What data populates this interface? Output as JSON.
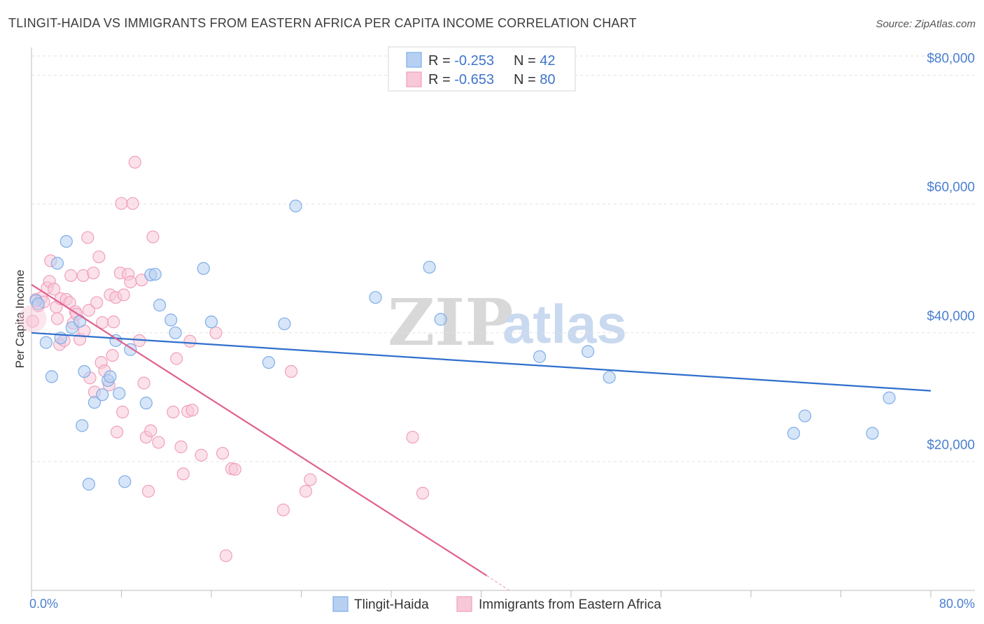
{
  "chart_data": {
    "type": "scatter",
    "title": "TLINGIT-HAIDA VS IMMIGRANTS FROM EASTERN AFRICA PER CAPITA INCOME CORRELATION CHART",
    "source": "Source: ZipAtlas.com",
    "ylabel": "Per Capita Income",
    "xlabel": "",
    "xlim": [
      0,
      80
    ],
    "ylim": [
      0,
      83000
    ],
    "x_tick_labels": {
      "left": "0.0%",
      "right": "80.0%"
    },
    "y_ticks": [
      {
        "value": 20000,
        "label": "$20,000"
      },
      {
        "value": 40000,
        "label": "$40,000"
      },
      {
        "value": 60000,
        "label": "$60,000"
      },
      {
        "value": 80000,
        "label": "$80,000"
      }
    ],
    "grid": true,
    "legend_position": "top-center",
    "watermark": {
      "zip": "ZIP",
      "atlas": "atlas"
    },
    "legend": [
      {
        "r_label": "R = ",
        "r_value": "-0.253",
        "n_label": "N = ",
        "n_value": "42"
      },
      {
        "r_label": "R = ",
        "r_value": "-0.653",
        "n_label": "N = ",
        "n_value": "80"
      }
    ],
    "series": [
      {
        "name": "Tlingit-Haida",
        "color": "#7eaee8",
        "fill": "#b7d0f2",
        "line_color": "#2f6fcc",
        "trend": {
          "x0": 0,
          "y0": 40000,
          "x1": 80,
          "y1": 31000
        },
        "points": [
          [
            0.4,
            45000
          ],
          [
            0.6,
            44500
          ],
          [
            1.3,
            38500
          ],
          [
            1.8,
            33200
          ],
          [
            2.3,
            50800
          ],
          [
            2.6,
            39200
          ],
          [
            3.1,
            54200
          ],
          [
            3.6,
            40800
          ],
          [
            4.3,
            41800
          ],
          [
            4.5,
            25600
          ],
          [
            4.7,
            34000
          ],
          [
            5.1,
            16500
          ],
          [
            5.6,
            29200
          ],
          [
            6.3,
            30400
          ],
          [
            6.8,
            32600
          ],
          [
            7.0,
            33200
          ],
          [
            7.5,
            38800
          ],
          [
            7.8,
            30600
          ],
          [
            8.3,
            16900
          ],
          [
            8.8,
            37400
          ],
          [
            10.2,
            29100
          ],
          [
            10.6,
            49000
          ],
          [
            11.0,
            49100
          ],
          [
            11.4,
            44300
          ],
          [
            12.4,
            42000
          ],
          [
            12.8,
            40000
          ],
          [
            15.3,
            50000
          ],
          [
            16.0,
            41700
          ],
          [
            21.1,
            35400
          ],
          [
            22.5,
            41400
          ],
          [
            23.5,
            59700
          ],
          [
            30.6,
            45500
          ],
          [
            35.4,
            50200
          ],
          [
            36.4,
            42100
          ],
          [
            45.2,
            36300
          ],
          [
            49.5,
            37100
          ],
          [
            51.4,
            33100
          ],
          [
            67.8,
            24400
          ],
          [
            68.8,
            27100
          ],
          [
            74.8,
            24400
          ],
          [
            76.3,
            29900
          ]
        ]
      },
      {
        "name": "Immigrants from Eastern Africa",
        "color": "#f0a0bc",
        "fill": "#f8c8d8",
        "line_color": "#e06090",
        "trend": {
          "x0": 0,
          "y0": 47500,
          "x1": 40.5,
          "y1": 2300
        },
        "trend_dash": {
          "x0": 40.5,
          "y0": 2300,
          "x1": 42.5,
          "y1": 0
        },
        "points": [
          [
            0.1,
            41800
          ],
          [
            0.4,
            45200
          ],
          [
            0.6,
            44200
          ],
          [
            0.9,
            45500
          ],
          [
            1.1,
            44800
          ],
          [
            1.4,
            47000
          ],
          [
            1.6,
            48000
          ],
          [
            1.7,
            51200
          ],
          [
            2.0,
            46800
          ],
          [
            2.2,
            44000
          ],
          [
            2.3,
            42200
          ],
          [
            2.5,
            38200
          ],
          [
            2.6,
            45300
          ],
          [
            2.9,
            38800
          ],
          [
            3.1,
            45200
          ],
          [
            3.4,
            44700
          ],
          [
            3.5,
            48900
          ],
          [
            3.7,
            41500
          ],
          [
            3.9,
            43300
          ],
          [
            4.0,
            42900
          ],
          [
            4.3,
            39000
          ],
          [
            4.6,
            48900
          ],
          [
            4.7,
            40300
          ],
          [
            5.0,
            54800
          ],
          [
            5.1,
            43500
          ],
          [
            5.2,
            33000
          ],
          [
            5.5,
            49300
          ],
          [
            5.6,
            30800
          ],
          [
            5.8,
            44700
          ],
          [
            6.0,
            51800
          ],
          [
            6.2,
            35400
          ],
          [
            6.3,
            41600
          ],
          [
            6.5,
            34100
          ],
          [
            6.9,
            31900
          ],
          [
            7.0,
            45900
          ],
          [
            7.2,
            36500
          ],
          [
            7.3,
            41700
          ],
          [
            7.5,
            45500
          ],
          [
            7.6,
            24600
          ],
          [
            7.9,
            49300
          ],
          [
            8.0,
            60100
          ],
          [
            8.1,
            27700
          ],
          [
            8.2,
            45900
          ],
          [
            8.6,
            49100
          ],
          [
            8.8,
            47900
          ],
          [
            9.0,
            60100
          ],
          [
            9.2,
            66500
          ],
          [
            9.6,
            38800
          ],
          [
            9.8,
            48200
          ],
          [
            10.0,
            32200
          ],
          [
            10.2,
            23800
          ],
          [
            10.4,
            15400
          ],
          [
            10.6,
            24800
          ],
          [
            10.8,
            54900
          ],
          [
            11.3,
            23000
          ],
          [
            12.6,
            27700
          ],
          [
            12.9,
            36000
          ],
          [
            13.3,
            22300
          ],
          [
            13.5,
            18100
          ],
          [
            13.9,
            27800
          ],
          [
            14.1,
            38700
          ],
          [
            14.3,
            28000
          ],
          [
            15.1,
            21000
          ],
          [
            16.4,
            40000
          ],
          [
            17.0,
            21300
          ],
          [
            17.3,
            5400
          ],
          [
            17.8,
            18900
          ],
          [
            18.1,
            18800
          ],
          [
            22.4,
            12500
          ],
          [
            23.1,
            34000
          ],
          [
            24.4,
            15400
          ],
          [
            24.8,
            17200
          ],
          [
            33.9,
            23800
          ],
          [
            34.8,
            15100
          ]
        ]
      }
    ],
    "bottom_legend": [
      "Tlingit-Haida",
      "Immigrants from Eastern Africa"
    ]
  }
}
